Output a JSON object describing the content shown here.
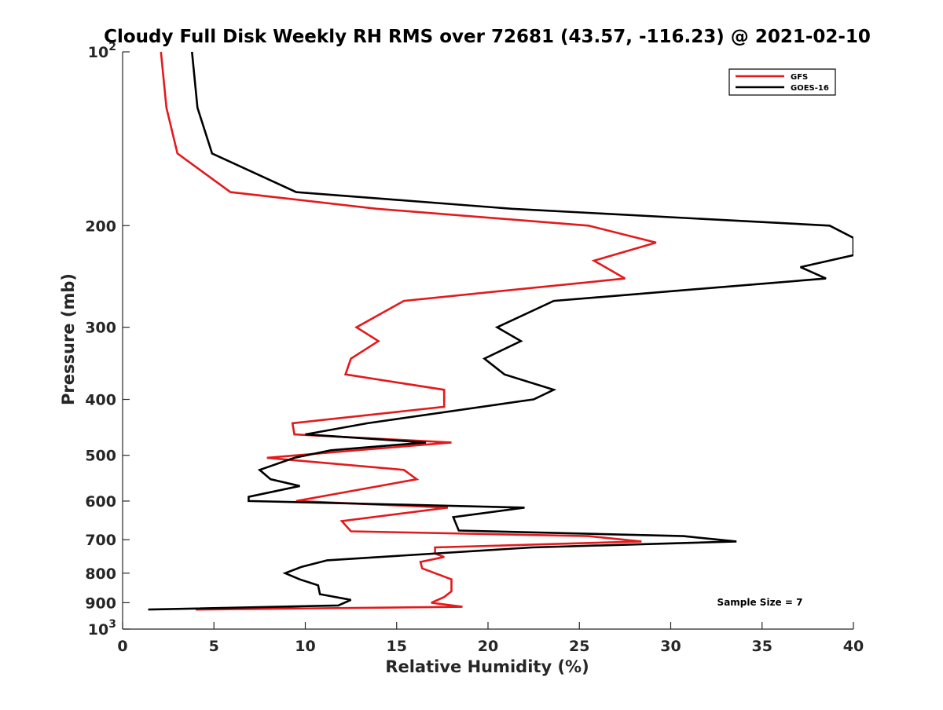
{
  "chart_data": {
    "type": "line",
    "title": "Cloudy Full Disk Weekly RH RMS over 72681 (43.57, -116.23) @ 2021-02-10",
    "xlabel": "Relative Humidity (%)",
    "ylabel": "Pressure (mb)",
    "xlim": [
      0,
      40
    ],
    "ylim": [
      100,
      1000
    ],
    "y_scale": "log",
    "y_reversed": true,
    "x_ticks": [
      "0",
      "5",
      "10",
      "15",
      "20",
      "25",
      "30",
      "35",
      "40"
    ],
    "y_ticks": [
      {
        "value": 100,
        "base": "10",
        "exp": "2"
      },
      {
        "value": 200,
        "label": "200"
      },
      {
        "value": 300,
        "label": "300"
      },
      {
        "value": 400,
        "label": "400"
      },
      {
        "value": 500,
        "label": "500"
      },
      {
        "value": 600,
        "label": "600"
      },
      {
        "value": 700,
        "label": "700"
      },
      {
        "value": 800,
        "label": "800"
      },
      {
        "value": 900,
        "label": "900"
      },
      {
        "value": 1000,
        "base": "10",
        "exp": "3"
      }
    ],
    "grid": false,
    "legend_position": "top-right",
    "annotation": "Sample Size = 7",
    "series": [
      {
        "name": "GFS",
        "color": "#e31a1c",
        "points": [
          [
            2.1,
            100
          ],
          [
            2.4,
            125
          ],
          [
            3.0,
            150
          ],
          [
            5.9,
            175
          ],
          [
            13.9,
            187
          ],
          [
            25.5,
            200
          ],
          [
            29.2,
            214
          ],
          [
            25.8,
            230
          ],
          [
            27.5,
            247
          ],
          [
            15.4,
            270
          ],
          [
            12.8,
            300
          ],
          [
            14.0,
            317
          ],
          [
            12.5,
            340
          ],
          [
            12.2,
            362
          ],
          [
            17.6,
            385
          ],
          [
            17.6,
            412
          ],
          [
            9.3,
            440
          ],
          [
            9.4,
            460
          ],
          [
            18.0,
            475
          ],
          [
            12.8,
            490
          ],
          [
            7.9,
            505
          ],
          [
            15.4,
            530
          ],
          [
            16.1,
            550
          ],
          [
            9.5,
            600
          ],
          [
            17.8,
            616
          ],
          [
            12.0,
            650
          ],
          [
            12.5,
            677
          ],
          [
            25.5,
            690
          ],
          [
            28.4,
            705
          ],
          [
            17.1,
            722
          ],
          [
            17.1,
            740
          ],
          [
            17.6,
            750
          ],
          [
            16.3,
            765
          ],
          [
            16.4,
            785
          ],
          [
            18.0,
            820
          ],
          [
            18.0,
            860
          ],
          [
            17.6,
            880
          ],
          [
            16.9,
            900
          ],
          [
            18.6,
            915
          ],
          [
            4.0,
            925
          ]
        ]
      },
      {
        "name": "GOES-16",
        "color": "#000000",
        "points": [
          [
            3.8,
            100
          ],
          [
            4.1,
            125
          ],
          [
            4.9,
            150
          ],
          [
            9.5,
            175
          ],
          [
            21.3,
            187
          ],
          [
            38.7,
            200
          ],
          [
            40.0,
            210
          ],
          [
            40.0,
            225
          ],
          [
            37.1,
            236
          ],
          [
            38.5,
            247
          ],
          [
            23.6,
            270
          ],
          [
            20.5,
            300
          ],
          [
            21.8,
            317
          ],
          [
            19.8,
            340
          ],
          [
            20.9,
            362
          ],
          [
            23.6,
            385
          ],
          [
            22.5,
            400
          ],
          [
            13.4,
            440
          ],
          [
            10.0,
            460
          ],
          [
            16.6,
            475
          ],
          [
            11.4,
            490
          ],
          [
            9.4,
            505
          ],
          [
            7.5,
            530
          ],
          [
            8.1,
            550
          ],
          [
            9.7,
            565
          ],
          [
            6.9,
            590
          ],
          [
            6.9,
            600
          ],
          [
            22.0,
            616
          ],
          [
            18.1,
            640
          ],
          [
            18.4,
            675
          ],
          [
            30.7,
            690
          ],
          [
            33.6,
            705
          ],
          [
            22.4,
            722
          ],
          [
            11.2,
            760
          ],
          [
            9.8,
            780
          ],
          [
            8.9,
            800
          ],
          [
            9.7,
            820
          ],
          [
            10.7,
            840
          ],
          [
            10.8,
            870
          ],
          [
            12.5,
            890
          ],
          [
            11.8,
            910
          ],
          [
            1.4,
            925
          ]
        ]
      }
    ]
  }
}
